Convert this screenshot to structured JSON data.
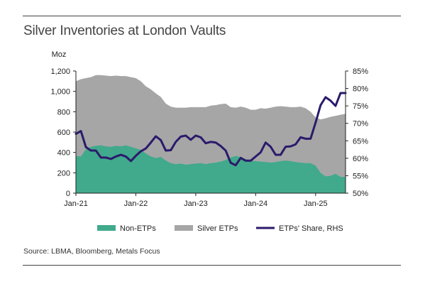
{
  "title": "Silver Inventories at London Vaults",
  "source": "Source: LBMA, Bloomberg, Metals Focus",
  "chart_data": {
    "type": "area",
    "left_unit": "Moz",
    "ylim_left": [
      0,
      1200
    ],
    "yticks_left": [
      0,
      200,
      400,
      600,
      800,
      1000,
      1200
    ],
    "ytick_labels_left": [
      "0",
      "200",
      "400",
      "600",
      "800",
      "1,000",
      "1,200"
    ],
    "ylim_right": [
      50,
      85
    ],
    "yticks_right": [
      50,
      55,
      60,
      65,
      70,
      75,
      80,
      85
    ],
    "ytick_labels_right": [
      "50%",
      "55%",
      "60%",
      "65%",
      "70%",
      "75%",
      "80%",
      "85%"
    ],
    "xlim": [
      "2021-01",
      "2025-07"
    ],
    "xticks": [
      "2021-01",
      "2022-01",
      "2023-01",
      "2024-01",
      "2025-01"
    ],
    "xtick_labels": [
      "Jan-21",
      "Jan-22",
      "Jan-23",
      "Jan-24",
      "Jan-25"
    ],
    "grid": false,
    "legend_position": "bottom",
    "colors": {
      "non_etps": "#41a98c",
      "silver_etps": "#a6a6a6",
      "share": "#2b1a6b"
    },
    "legend": [
      {
        "label": "Non-ETPs",
        "kind": "area",
        "color": "#41a98c"
      },
      {
        "label": "Silver ETPs",
        "kind": "area",
        "color": "#a6a6a6"
      },
      {
        "label": "ETPs' Share, RHS",
        "kind": "line",
        "color": "#2b1a6b"
      }
    ],
    "x": [
      "2021-01",
      "2021-02",
      "2021-03",
      "2021-04",
      "2021-05",
      "2021-06",
      "2021-07",
      "2021-08",
      "2021-09",
      "2021-10",
      "2021-11",
      "2021-12",
      "2022-01",
      "2022-02",
      "2022-03",
      "2022-04",
      "2022-05",
      "2022-06",
      "2022-07",
      "2022-08",
      "2022-09",
      "2022-10",
      "2022-11",
      "2022-12",
      "2023-01",
      "2023-02",
      "2023-03",
      "2023-04",
      "2023-05",
      "2023-06",
      "2023-07",
      "2023-08",
      "2023-09",
      "2023-10",
      "2023-11",
      "2023-12",
      "2024-01",
      "2024-02",
      "2024-03",
      "2024-04",
      "2024-05",
      "2024-06",
      "2024-07",
      "2024-08",
      "2024-09",
      "2024-10",
      "2024-11",
      "2024-12",
      "2025-01",
      "2025-02",
      "2025-03",
      "2025-04",
      "2025-05",
      "2025-06",
      "2025-07"
    ],
    "series": [
      {
        "name": "Non-ETPs",
        "axis": "left",
        "values": [
          365,
          360,
          430,
          455,
          465,
          470,
          460,
          455,
          465,
          460,
          470,
          455,
          440,
          425,
          390,
          360,
          345,
          355,
          320,
          295,
          285,
          290,
          280,
          285,
          290,
          295,
          285,
          295,
          300,
          310,
          325,
          350,
          365,
          355,
          335,
          320,
          315,
          310,
          305,
          300,
          305,
          315,
          320,
          315,
          305,
          300,
          295,
          295,
          270,
          200,
          165,
          170,
          190,
          160,
          160
        ]
      },
      {
        "name": "Silver ETPs",
        "axis": "left",
        "values": [
          1100,
          1120,
          1130,
          1140,
          1160,
          1160,
          1155,
          1150,
          1155,
          1150,
          1150,
          1140,
          1130,
          1100,
          1050,
          1020,
          980,
          945,
          880,
          850,
          840,
          840,
          840,
          845,
          845,
          845,
          845,
          860,
          865,
          875,
          880,
          845,
          840,
          850,
          840,
          820,
          820,
          835,
          830,
          840,
          850,
          855,
          850,
          845,
          845,
          850,
          835,
          800,
          745,
          725,
          735,
          750,
          760,
          770,
          780
        ]
      },
      {
        "name": "ETPs' Share, RHS",
        "axis": "right",
        "values": [
          67.0,
          67.8,
          63.2,
          62.2,
          62.2,
          60.2,
          60.2,
          59.8,
          60.5,
          61.0,
          60.5,
          59.2,
          60.7,
          62.0,
          62.8,
          64.5,
          66.3,
          65.2,
          62.2,
          62.3,
          64.7,
          66.2,
          66.5,
          65.3,
          66.5,
          66.0,
          64.3,
          64.7,
          64.5,
          63.5,
          62.2,
          58.7,
          58.0,
          60.1,
          59.3,
          59.3,
          60.5,
          61.7,
          64.5,
          63.3,
          61.0,
          61.0,
          63.3,
          63.4,
          64.0,
          66.0,
          65.6,
          65.6,
          70.2,
          75.2,
          77.5,
          76.5,
          75.0,
          78.7,
          78.7
        ]
      }
    ]
  }
}
